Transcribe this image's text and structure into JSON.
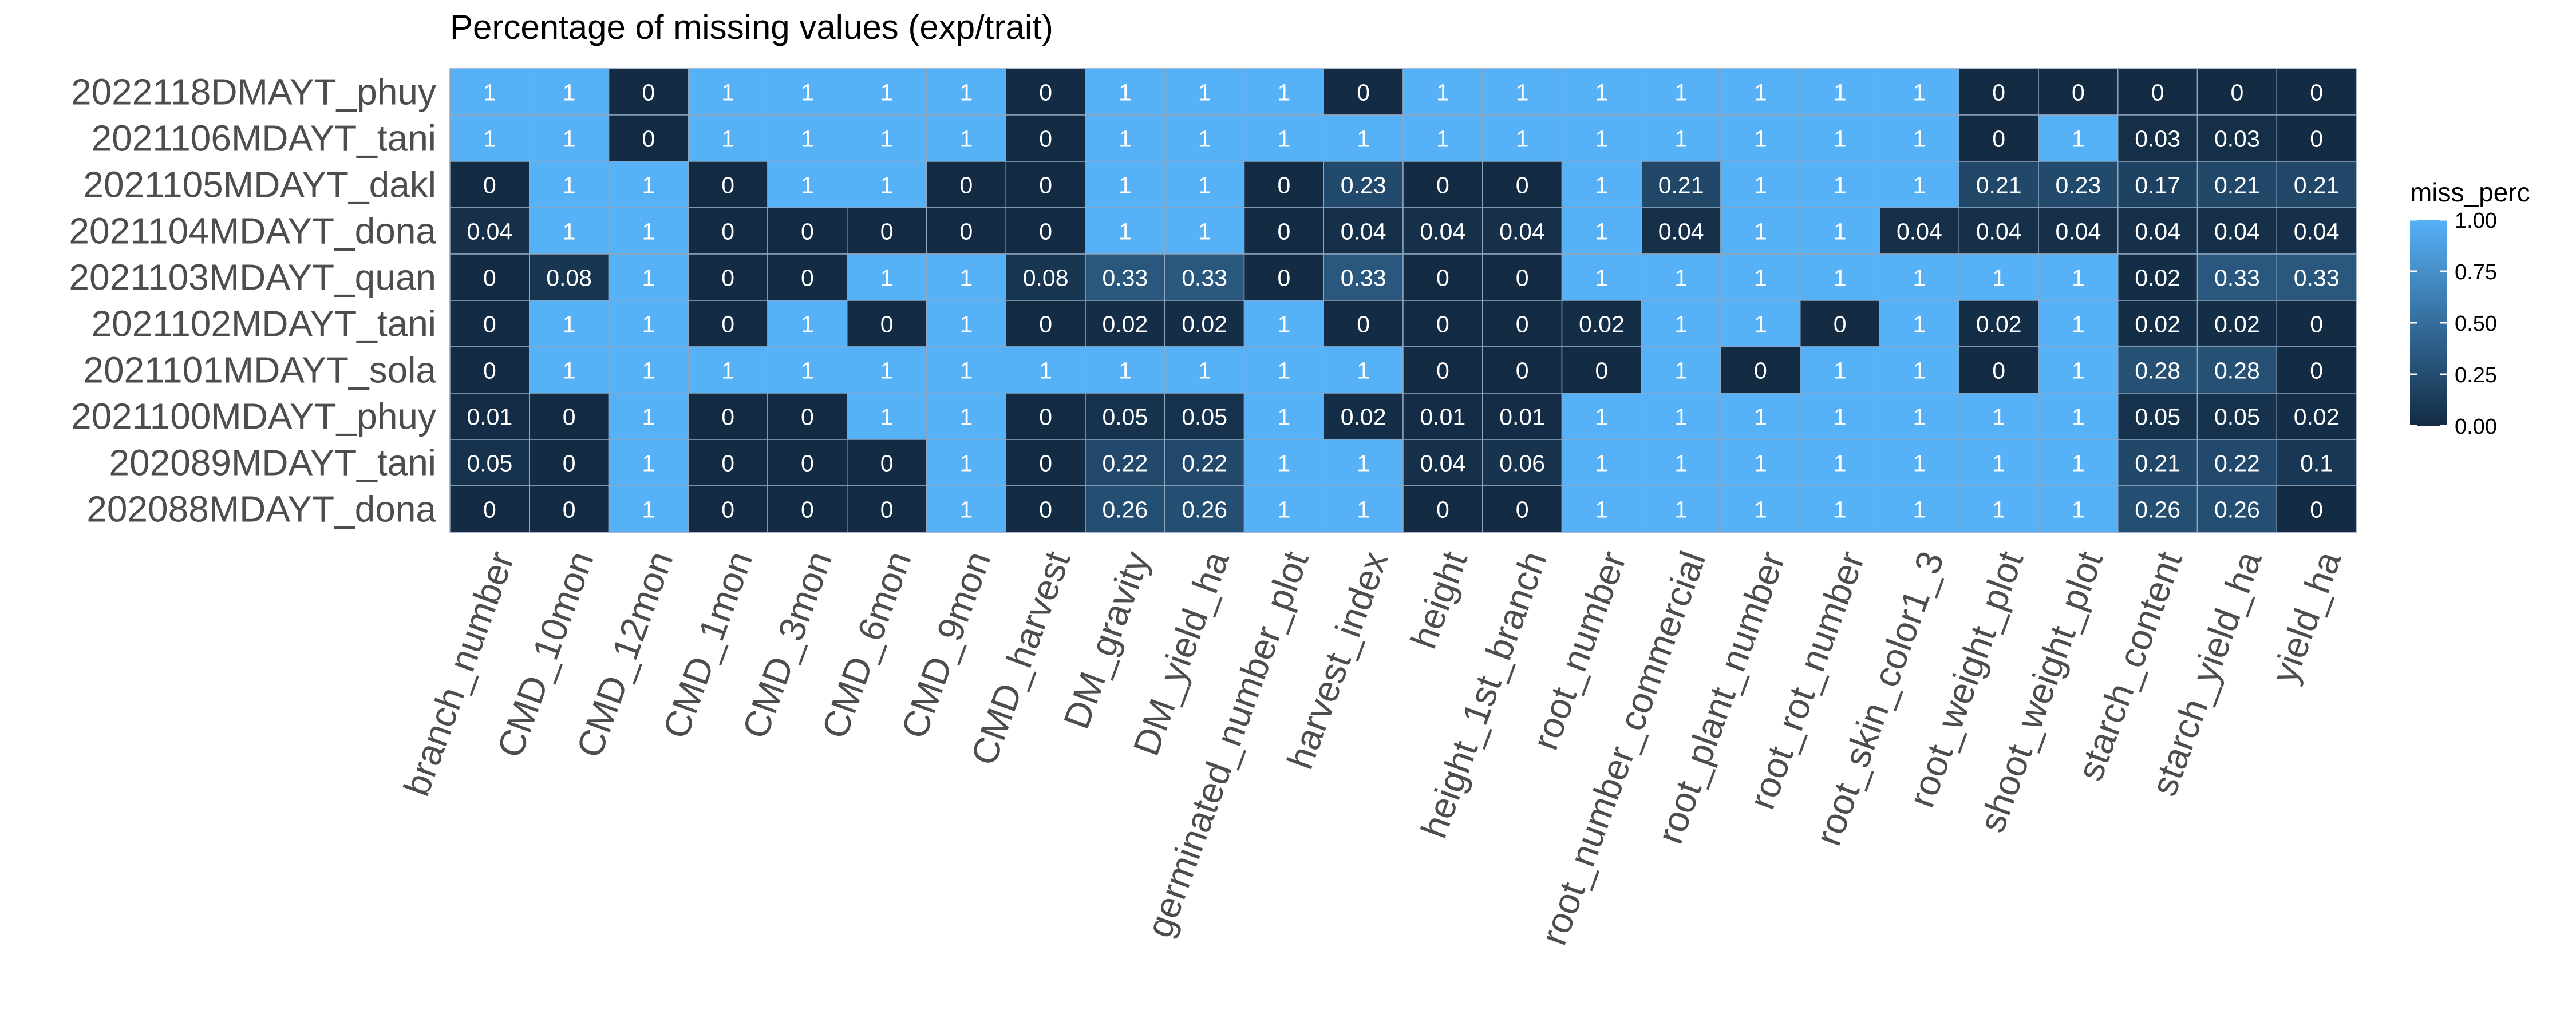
{
  "chart_data": {
    "type": "heatmap",
    "title": "Percentage of missing values (exp/trait)",
    "rows": [
      "2022118DMAYT_phuy",
      "2021106MDAYT_tani",
      "2021105MDAYT_dakl",
      "2021104MDAYT_dona",
      "2021103MDAYT_quan",
      "2021102MDAYT_tani",
      "2021101MDAYT_sola",
      "2021100MDAYT_phuy",
      "202089MDAYT_tani",
      "202088MDAYT_dona"
    ],
    "columns": [
      "branch_number",
      "CMD_10mon",
      "CMD_12mon",
      "CMD_1mon",
      "CMD_3mon",
      "CMD_6mon",
      "CMD_9mon",
      "CMD_harvest",
      "DM_gravity",
      "DM_yield_ha",
      "germinated_number_plot",
      "harvest_index",
      "height",
      "height_1st_branch",
      "root_number",
      "root_number_commercial",
      "root_plant_number",
      "root_rot_number",
      "root_skin_color1_3",
      "root_weight_plot",
      "shoot_weight_plot",
      "starch_content",
      "starch_yield_ha",
      "yield_ha"
    ],
    "values": [
      [
        1,
        1,
        0,
        1,
        1,
        1,
        1,
        0,
        1,
        1,
        1,
        0,
        1,
        1,
        1,
        1,
        1,
        1,
        1,
        0,
        0,
        0,
        0,
        0
      ],
      [
        1,
        1,
        0,
        1,
        1,
        1,
        1,
        0,
        1,
        1,
        1,
        1,
        1,
        1,
        1,
        1,
        1,
        1,
        1,
        0,
        1,
        0.03,
        0.03,
        0
      ],
      [
        0,
        1,
        1,
        0,
        1,
        1,
        0,
        0,
        1,
        1,
        0,
        0.23,
        0,
        0,
        1,
        0.21,
        1,
        1,
        1,
        0.21,
        0.23,
        0.17,
        0.21,
        0.21
      ],
      [
        0.04,
        1,
        1,
        0,
        0,
        0,
        0,
        0,
        1,
        1,
        0,
        0.04,
        0.04,
        0.04,
        1,
        0.04,
        1,
        1,
        0.04,
        0.04,
        0.04,
        0.04,
        0.04,
        0.04
      ],
      [
        0,
        0.08,
        1,
        0,
        0,
        1,
        1,
        0.08,
        0.33,
        0.33,
        0,
        0.33,
        0,
        0,
        1,
        1,
        1,
        1,
        1,
        1,
        1,
        0.02,
        0.33,
        0.33
      ],
      [
        0,
        1,
        1,
        0,
        1,
        0,
        1,
        0,
        0.02,
        0.02,
        1,
        0,
        0,
        0,
        0.02,
        1,
        1,
        0,
        1,
        0.02,
        1,
        0.02,
        0.02,
        0
      ],
      [
        0,
        1,
        1,
        1,
        1,
        1,
        1,
        1,
        1,
        1,
        1,
        1,
        0,
        0,
        0,
        1,
        0,
        1,
        1,
        0,
        1,
        0.28,
        0.28,
        0
      ],
      [
        0.01,
        0,
        1,
        0,
        0,
        1,
        1,
        0,
        0.05,
        0.05,
        1,
        0.02,
        0.01,
        0.01,
        1,
        1,
        1,
        1,
        1,
        1,
        1,
        0.05,
        0.05,
        0.02
      ],
      [
        0.05,
        0,
        1,
        0,
        0,
        0,
        1,
        0,
        0.22,
        0.22,
        1,
        1,
        0.04,
        0.06,
        1,
        1,
        1,
        1,
        1,
        1,
        1,
        0.21,
        0.22,
        0.1
      ],
      [
        0,
        0,
        1,
        0,
        0,
        0,
        1,
        0,
        0.26,
        0.26,
        1,
        1,
        0,
        0,
        1,
        1,
        1,
        1,
        1,
        1,
        1,
        0.26,
        0.26,
        0
      ]
    ],
    "legend": {
      "title": "miss_perc",
      "ticks": [
        "1.00",
        "0.75",
        "0.50",
        "0.25",
        "0.00"
      ],
      "range": [
        0,
        1
      ],
      "placement": "right"
    },
    "colors": {
      "low": "#132B43",
      "high": "#56B1F7",
      "label": "#ffffff",
      "axis_text": "#4D4D4D",
      "title": "#000000"
    }
  }
}
